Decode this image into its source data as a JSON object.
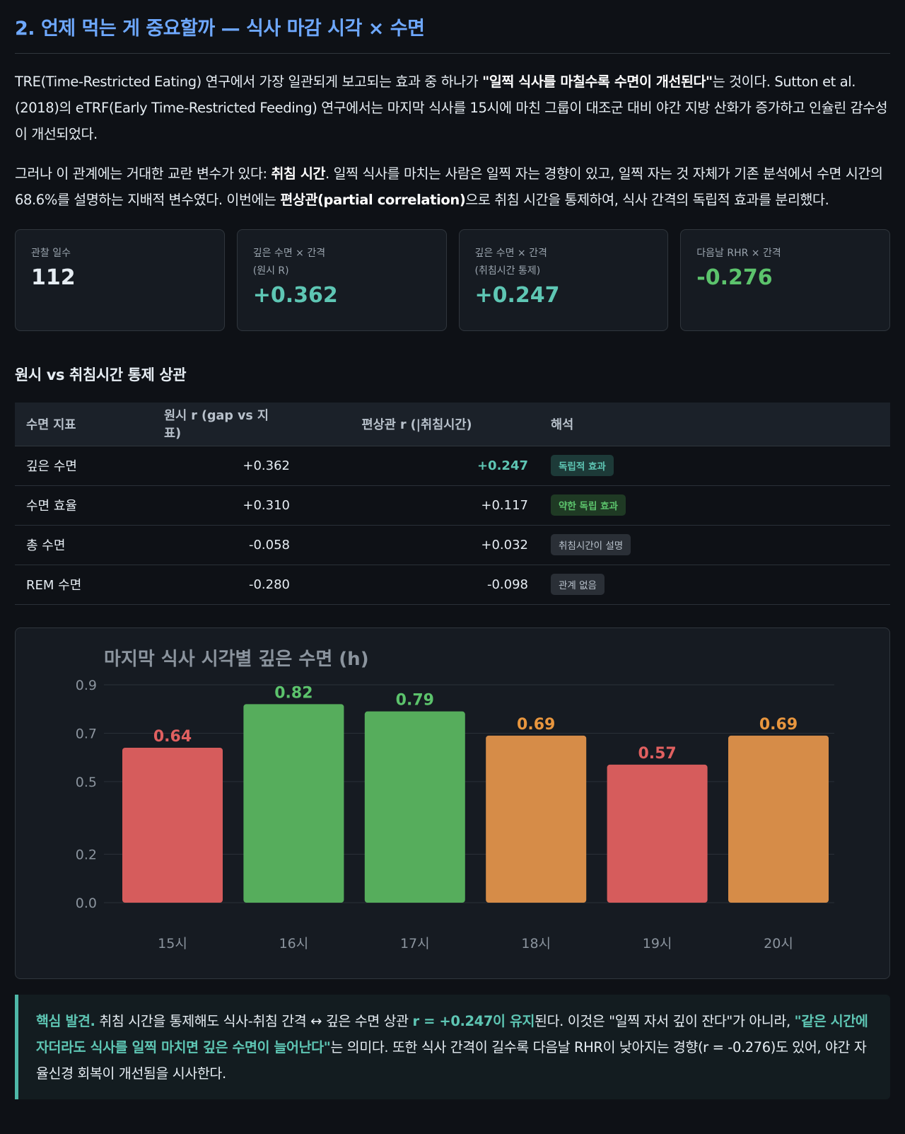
{
  "section": {
    "title": "2. 언제 먹는 게 중요할까 — 식사 마감 시각 × 수면"
  },
  "intro": {
    "p1_a": "TRE(Time-Restricted Eating) 연구에서 가장 일관되게 보고되는 효과 중 하나가 ",
    "p1_b": "\"일찍 식사를 마칠수록 수면이 개선된다\"",
    "p1_c": "는 것이다. Sutton et al. (2018)의 eTRF(Early Time-Restricted Feeding) 연구에서는 마지막 식사를 15시에 마친 그룹이 대조군 대비 야간 지방 산화가 증가하고 인슐린 감수성이 개선되었다.",
    "p2_a": "그러나 이 관계에는 거대한 교란 변수가 있다: ",
    "p2_b": "취침 시간",
    "p2_c": ". 일찍 식사를 마치는 사람은 일찍 자는 경향이 있고, 일찍 자는 것 자체가 기존 분석에서 수면 시간의 68.6%를 설명하는 지배적 변수였다. 이번에는 ",
    "p2_d": "편상관(partial correlation)",
    "p2_e": "으로 취침 시간을 통제하여, 식사 간격의 독립적 효과를 분리했다."
  },
  "stats": [
    {
      "label": "관찰 일수",
      "value": "112",
      "color": "white"
    },
    {
      "label": "깊은 수면 × 간격\n(원시 R)",
      "value": "+0.362",
      "color": "teal"
    },
    {
      "label": "깊은 수면 × 간격\n(취침시간 통제)",
      "value": "+0.247",
      "color": "teal"
    },
    {
      "label": "다음날 RHR × 간격",
      "value": "-0.276",
      "color": "green"
    }
  ],
  "table": {
    "title": "원시 vs 취침시간 통제 상관",
    "headers": [
      "수면 지표",
      "원시 r (gap vs 지표)",
      "편상관 r (|취침시간)",
      "해석"
    ],
    "rows": [
      {
        "metric": "깊은 수면",
        "raw": "+0.362",
        "partial": "+0.247",
        "partial_highlight": true,
        "badge": "독립적 효과",
        "badge_style": "teal"
      },
      {
        "metric": "수면 효율",
        "raw": "+0.310",
        "partial": "+0.117",
        "partial_highlight": false,
        "badge": "약한 독립 효과",
        "badge_style": "green"
      },
      {
        "metric": "총 수면",
        "raw": "-0.058",
        "partial": "+0.032",
        "partial_highlight": false,
        "badge": "취침시간이 설명",
        "badge_style": "gray"
      },
      {
        "metric": "REM 수면",
        "raw": "-0.280",
        "partial": "-0.098",
        "partial_highlight": false,
        "badge": "관계 없음",
        "badge_style": "gray"
      }
    ]
  },
  "chart_data": {
    "type": "bar",
    "title": "마지막 식사 시각별 깊은 수면 (h)",
    "xlabel": "",
    "ylabel": "",
    "categories": [
      "15시",
      "16시",
      "17시",
      "18시",
      "19시",
      "20시"
    ],
    "values": [
      0.64,
      0.82,
      0.79,
      0.69,
      0.57,
      0.69
    ],
    "value_labels": [
      "0.64",
      "0.82",
      "0.79",
      "0.69",
      "0.57",
      "0.69"
    ],
    "bar_colors": [
      "#d65c5c",
      "#56ad5c",
      "#56ad5c",
      "#d68c48",
      "#d65c5c",
      "#d68c48"
    ],
    "label_colors": [
      "#e06060",
      "#5cc36c",
      "#5cc36c",
      "#e8963e",
      "#e06060",
      "#e8963e"
    ],
    "y_ticks": [
      0.0,
      0.2,
      0.5,
      0.7,
      0.9
    ],
    "y_tick_labels": [
      "0.0",
      "0.2",
      "0.5",
      "0.7",
      "0.9"
    ],
    "ylim": [
      0,
      0.9
    ],
    "grid": true,
    "legend": "none"
  },
  "callout": {
    "lead": "핵심 발견.",
    "t1": " 취침 시간을 통제해도 식사-취침 간격 ↔ 깊은 수면 상관 ",
    "h1": "r = +0.247이 유지",
    "t2": "된다. 이것은 \"일찍 자서 깊이 잔다\"가 아니라, ",
    "h2": "\"같은 시간에 자더라도 식사를 일찍 마치면 깊은 수면이 늘어난다\"",
    "t3": "는 의미다. 또한 식사 간격이 길수록 다음날 RHR이 낮아지는 경향(r = -0.276)도 있어, 야간 자율신경 회복이 개선됨을 시사한다."
  }
}
